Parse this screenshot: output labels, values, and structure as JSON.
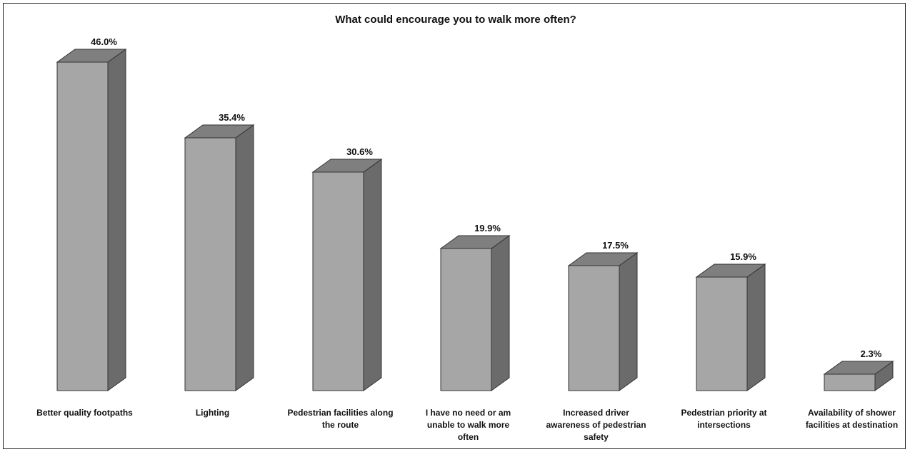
{
  "chart_data": {
    "type": "bar",
    "style": "3d-column",
    "title": "What could encourage you to walk more often?",
    "categories": [
      "Better quality footpaths",
      "Lighting",
      "Pedestrian facilities along the route",
      "I have no need or am unable to walk more often",
      "Increased driver awareness of pedestrian safety",
      "Pedestrian priority at intersections",
      "Availability of shower facilities at destination"
    ],
    "category_lines": [
      [
        "Better quality footpaths"
      ],
      [
        "Lighting"
      ],
      [
        "Pedestrian facilities along",
        "the route"
      ],
      [
        "I have no need or am",
        "unable to walk more",
        "often"
      ],
      [
        "Increased driver",
        "awareness of pedestrian",
        "safety"
      ],
      [
        "Pedestrian priority at",
        "intersections"
      ],
      [
        "Availability of shower",
        "facilities at destination"
      ]
    ],
    "values": [
      46.0,
      35.4,
      30.6,
      19.9,
      17.5,
      15.9,
      2.3
    ],
    "data_labels": [
      "46.0%",
      "35.4%",
      "30.6%",
      "19.9%",
      "17.5%",
      "15.9%",
      "2.3%"
    ],
    "ylim": [
      0,
      46.0
    ],
    "grid": false,
    "legend": "none",
    "colors": {
      "front": "#a6a6a6",
      "side": "#6b6b6b",
      "top": "#7f7f7f",
      "edge": "#333333"
    }
  }
}
